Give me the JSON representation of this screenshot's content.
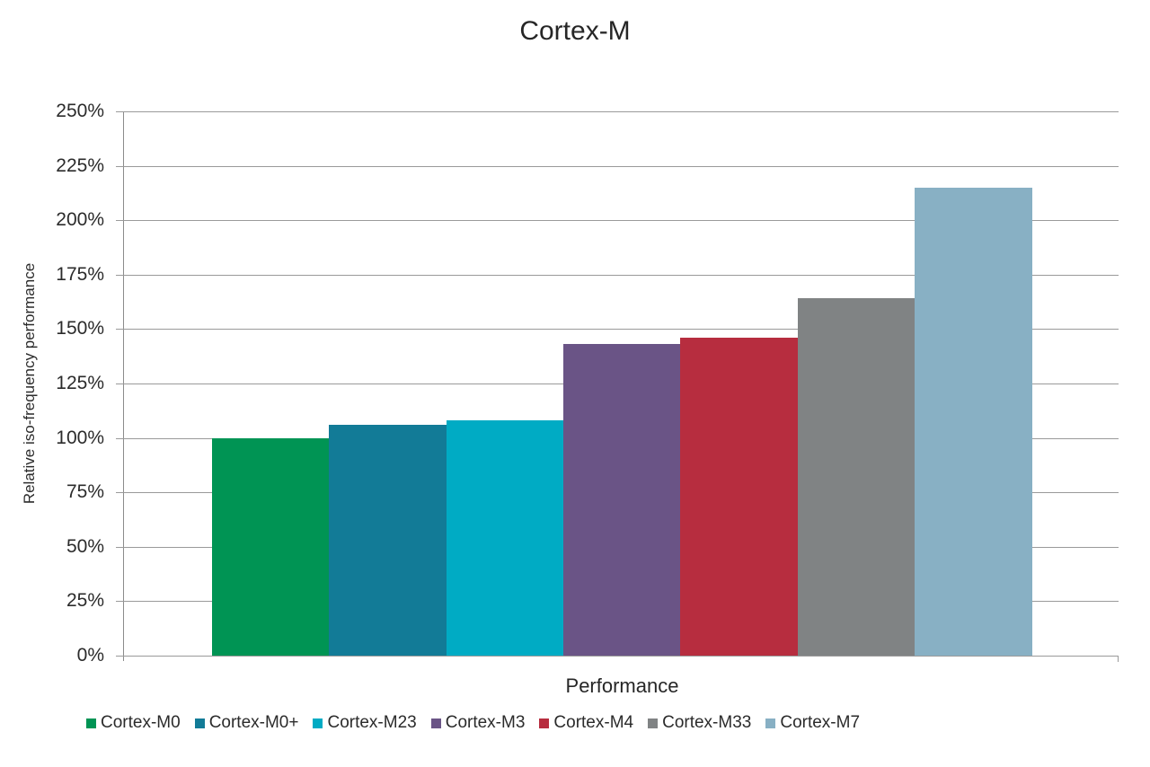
{
  "chart_data": {
    "type": "bar",
    "title": "Cortex-M",
    "xlabel": "Performance",
    "ylabel": "Relative iso-frequency  performance",
    "ylim": [
      0,
      250
    ],
    "yticks": [
      "0%",
      "25%",
      "50%",
      "75%",
      "100%",
      "125%",
      "150%",
      "175%",
      "200%",
      "225%",
      "250%"
    ],
    "grid": true,
    "legend_position": "bottom",
    "categories": [
      "Performance"
    ],
    "series": [
      {
        "name": "Cortex-M0",
        "values": [
          100
        ],
        "color": "#009454"
      },
      {
        "name": "Cortex-M0+",
        "values": [
          106
        ],
        "color": "#127b97"
      },
      {
        "name": "Cortex-M23",
        "values": [
          108
        ],
        "color": "#00abc4"
      },
      {
        "name": "Cortex-M3",
        "values": [
          143
        ],
        "color": "#6a5486"
      },
      {
        "name": "Cortex-M4",
        "values": [
          146
        ],
        "color": "#b72d3f"
      },
      {
        "name": "Cortex-M33",
        "values": [
          164
        ],
        "color": "#808384"
      },
      {
        "name": "Cortex-M7",
        "values": [
          215
        ],
        "color": "#88b0c4"
      }
    ]
  }
}
